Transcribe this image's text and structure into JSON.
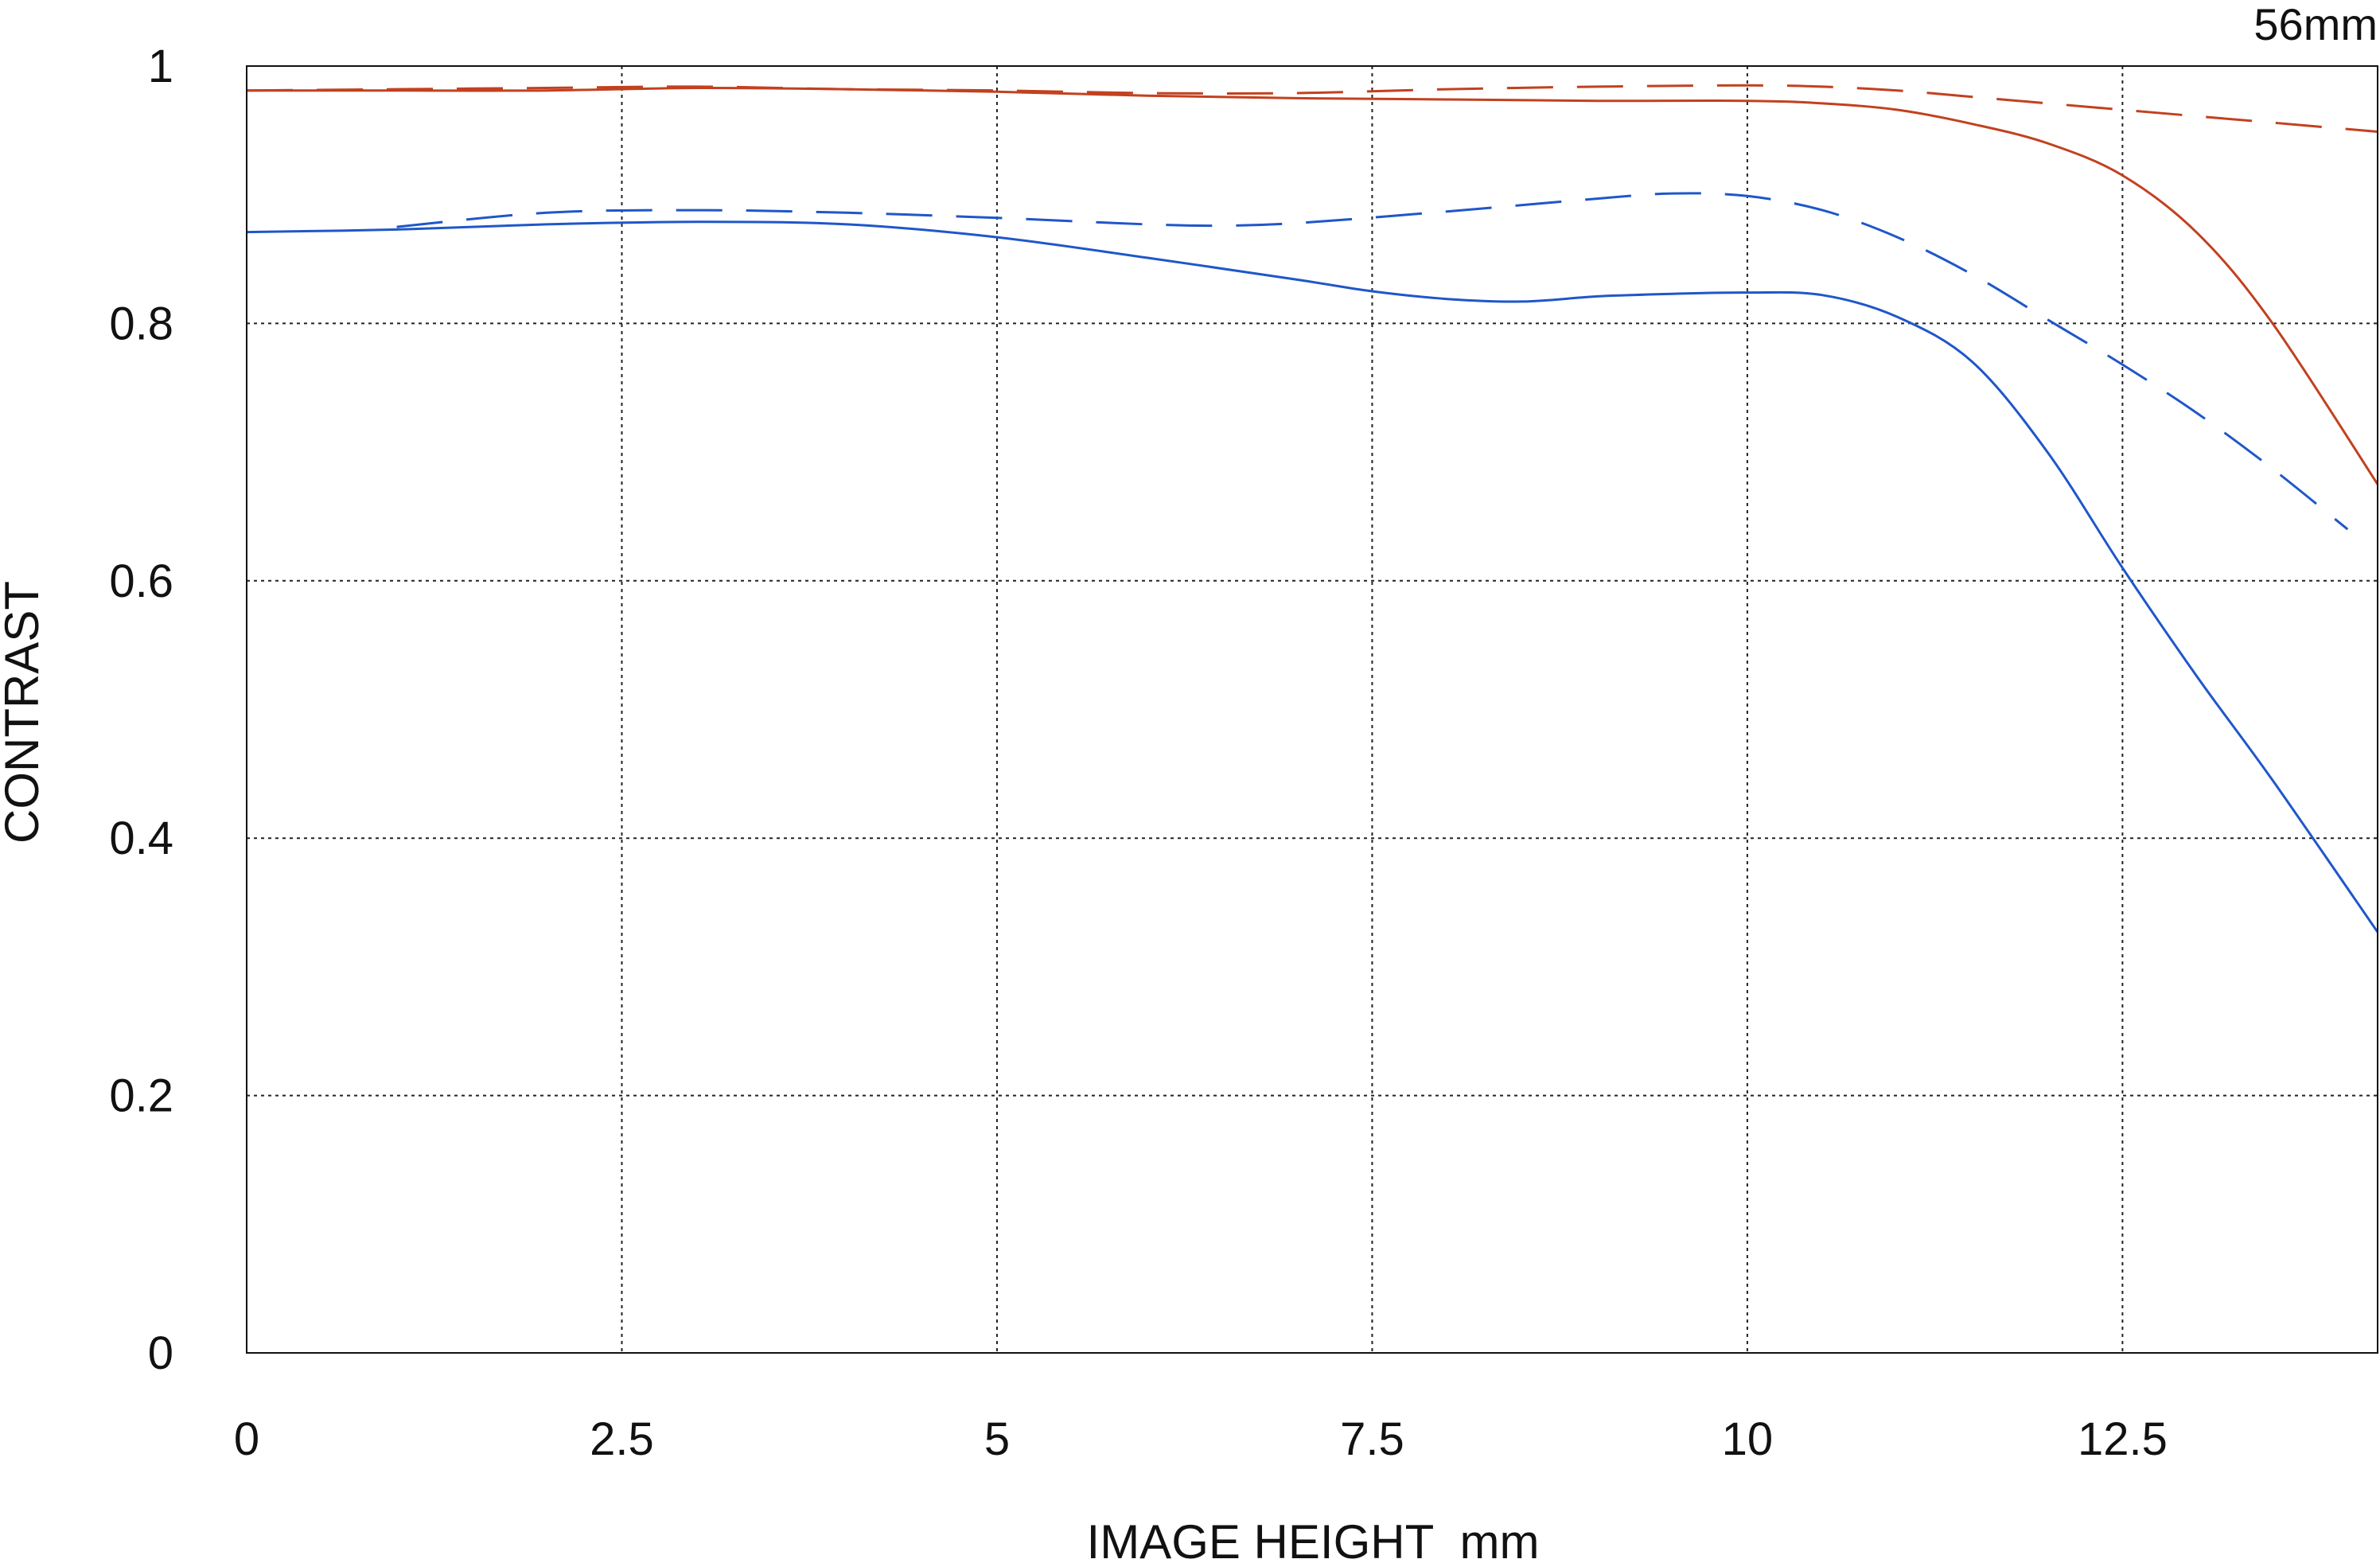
{
  "chart_data": {
    "type": "line",
    "title": "",
    "corner_label": "56mm",
    "xlabel": "IMAGE HEIGHT  mm",
    "ylabel": "CONTRAST",
    "xlim": [
      0,
      14.2
    ],
    "ylim": [
      0,
      1
    ],
    "xticks": [
      0,
      2.5,
      5,
      7.5,
      10,
      12.5
    ],
    "xtick_labels": [
      "0",
      "2.5",
      "5",
      "7.5",
      "10",
      "12.5"
    ],
    "yticks": [
      0,
      0.2,
      0.4,
      0.6,
      0.8,
      1
    ],
    "ytick_labels": [
      "0",
      "0.2",
      "0.4",
      "0.6",
      "0.8",
      "1"
    ],
    "grid": true,
    "grid_style": "dotted",
    "legend": "none",
    "series": [
      {
        "color": "#c2411f",
        "dash": "solid",
        "x": [
          0,
          1,
          2,
          3,
          4,
          5,
          6,
          7,
          8,
          9,
          10,
          10.5,
          11,
          11.5,
          12,
          12.5,
          13,
          13.5,
          14.2
        ],
        "y": [
          0.981,
          0.981,
          0.981,
          0.983,
          0.982,
          0.98,
          0.977,
          0.975,
          0.974,
          0.973,
          0.973,
          0.971,
          0.966,
          0.955,
          0.94,
          0.915,
          0.87,
          0.8,
          0.675
        ]
      },
      {
        "color": "#c2411f",
        "dash": "dashed",
        "x": [
          0,
          1,
          2,
          3,
          4,
          5,
          6,
          7,
          8,
          9,
          10,
          10.5,
          11,
          11.5,
          12,
          12.5,
          13,
          13.5,
          14.2
        ],
        "y": [
          0.981,
          0.982,
          0.983,
          0.984,
          0.982,
          0.981,
          0.979,
          0.979,
          0.982,
          0.984,
          0.985,
          0.984,
          0.981,
          0.976,
          0.971,
          0.966,
          0.961,
          0.956,
          0.949
        ]
      },
      {
        "color": "#1f57c9",
        "dash": "solid",
        "x": [
          0,
          1,
          2,
          3,
          4,
          5,
          6,
          7,
          7.5,
          8,
          8.5,
          9,
          9.5,
          10,
          10.5,
          11,
          11.5,
          12,
          12.5,
          13,
          13.5,
          14.2
        ],
        "y": [
          0.871,
          0.873,
          0.877,
          0.879,
          0.877,
          0.867,
          0.851,
          0.834,
          0.825,
          0.819,
          0.817,
          0.821,
          0.823,
          0.824,
          0.822,
          0.805,
          0.77,
          0.7,
          0.61,
          0.525,
          0.445,
          0.327
        ]
      },
      {
        "color": "#1f57c9",
        "dash": "dashed",
        "x": [
          1,
          2,
          3,
          4,
          5,
          6,
          6.5,
          7,
          8,
          9,
          9.5,
          10,
          10.5,
          11,
          11.5,
          12,
          12.5,
          13,
          13.5,
          14
        ],
        "y": [
          0.875,
          0.886,
          0.888,
          0.886,
          0.882,
          0.877,
          0.876,
          0.878,
          0.887,
          0.897,
          0.901,
          0.899,
          0.888,
          0.867,
          0.838,
          0.803,
          0.768,
          0.73,
          0.687,
          0.64
        ]
      }
    ]
  }
}
